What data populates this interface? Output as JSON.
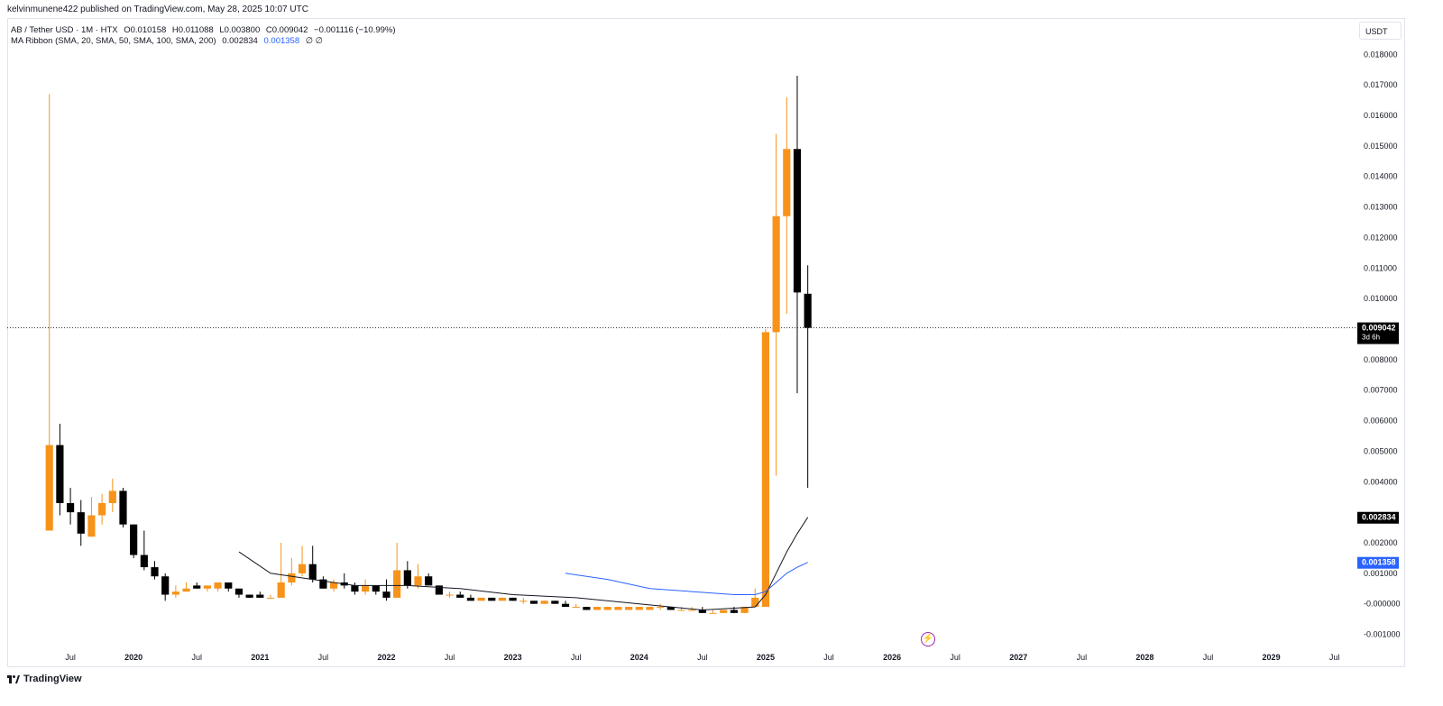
{
  "header": {
    "published": "kelvinmunene422 published on TradingView.com, May 28, 2025 10:07 UTC"
  },
  "legend": {
    "symbol": "AB / Tether USD · 1M · HTX",
    "open": "O0.010158",
    "high": "H0.011088",
    "low": "L0.003800",
    "close": "C0.009042",
    "change": "−0.001116 (−10.99%)",
    "ma_label": "MA Ribbon (SMA, 20, SMA, 50, SMA, 100, SMA, 200)",
    "ma_value1": "0.002834",
    "ma_value2": "0.001358",
    "ma_null": "∅ ∅"
  },
  "currency": "USDT",
  "price_badge": {
    "value": "0.009042",
    "countdown": "3d 6h"
  },
  "footer": {
    "brand": "TradingView"
  },
  "colors": {
    "up": "#f7931a",
    "down": "#000000",
    "ma20": "#131722",
    "ma50": "#2962ff",
    "grid": "#e0e3eb"
  },
  "chart_data": {
    "type": "candlestick",
    "ylim": [
      -0.00125,
      0.0186
    ],
    "y_ticks": [
      "0.018000",
      "0.017000",
      "0.016000",
      "0.015000",
      "0.014000",
      "0.013000",
      "0.012000",
      "0.011000",
      "0.010000",
      "0.008000",
      "0.007000",
      "0.006000",
      "0.005000",
      "0.004000",
      "0.002000",
      "0.001000",
      "-0.000000",
      "-0.001000"
    ],
    "x_ticks": [
      "Jul",
      "2020",
      "Jul",
      "2021",
      "Jul",
      "2022",
      "Jul",
      "2023",
      "Jul",
      "2024",
      "Jul",
      "2025",
      "Jul",
      "2026",
      "Jul",
      "2027",
      "Jul",
      "2028",
      "Jul",
      "2029",
      "Jul"
    ],
    "x_tick_dates": [
      "2019-07",
      "2020-01",
      "2020-07",
      "2021-01",
      "2021-07",
      "2022-01",
      "2022-07",
      "2023-01",
      "2023-07",
      "2024-01",
      "2024-07",
      "2025-01",
      "2025-07",
      "2026-01",
      "2026-07",
      "2027-01",
      "2027-07",
      "2028-01",
      "2028-07",
      "2029-01",
      "2029-07"
    ],
    "x_range": [
      "2019-01",
      "2029-09"
    ],
    "candles": [
      {
        "date": "2019-05",
        "o": 0.0024,
        "h": 0.0167,
        "l": 0.0024,
        "c": 0.0052
      },
      {
        "date": "2019-06",
        "o": 0.0052,
        "h": 0.0059,
        "l": 0.0029,
        "c": 0.0033
      },
      {
        "date": "2019-07",
        "o": 0.0033,
        "h": 0.0038,
        "l": 0.0026,
        "c": 0.003
      },
      {
        "date": "2019-08",
        "o": 0.003,
        "h": 0.0034,
        "l": 0.0019,
        "c": 0.0023
      },
      {
        "date": "2019-09",
        "o": 0.0022,
        "h": 0.0035,
        "l": 0.0022,
        "c": 0.0029
      },
      {
        "date": "2019-10",
        "o": 0.0029,
        "h": 0.0036,
        "l": 0.0026,
        "c": 0.0033
      },
      {
        "date": "2019-11",
        "o": 0.0033,
        "h": 0.0041,
        "l": 0.003,
        "c": 0.0037
      },
      {
        "date": "2019-12",
        "o": 0.0037,
        "h": 0.0038,
        "l": 0.0025,
        "c": 0.0026
      },
      {
        "date": "2020-01",
        "o": 0.0026,
        "h": 0.0026,
        "l": 0.0015,
        "c": 0.0016
      },
      {
        "date": "2020-02",
        "o": 0.0016,
        "h": 0.0024,
        "l": 0.0011,
        "c": 0.0012
      },
      {
        "date": "2020-03",
        "o": 0.0012,
        "h": 0.0014,
        "l": 0.0008,
        "c": 0.0009
      },
      {
        "date": "2020-04",
        "o": 0.0009,
        "h": 0.001,
        "l": 0.0001,
        "c": 0.0003
      },
      {
        "date": "2020-05",
        "o": 0.0003,
        "h": 0.0006,
        "l": 0.0002,
        "c": 0.0004
      },
      {
        "date": "2020-06",
        "o": 0.0004,
        "h": 0.0007,
        "l": 0.0004,
        "c": 0.0005
      },
      {
        "date": "2020-07",
        "o": 0.0006,
        "h": 0.0007,
        "l": 0.0005,
        "c": 0.0005
      },
      {
        "date": "2020-08",
        "o": 0.0005,
        "h": 0.0006,
        "l": 0.0004,
        "c": 0.0006
      },
      {
        "date": "2020-09",
        "o": 0.0005,
        "h": 0.0007,
        "l": 0.0004,
        "c": 0.0007
      },
      {
        "date": "2020-10",
        "o": 0.0007,
        "h": 0.0007,
        "l": 0.0004,
        "c": 0.0005
      },
      {
        "date": "2020-11",
        "o": 0.0005,
        "h": 0.0005,
        "l": 0.0002,
        "c": 0.0003
      },
      {
        "date": "2020-12",
        "o": 0.0003,
        "h": 0.0003,
        "l": 0.0002,
        "c": 0.0002
      },
      {
        "date": "2021-01",
        "o": 0.0003,
        "h": 0.0004,
        "l": 0.0002,
        "c": 0.0002
      },
      {
        "date": "2021-02",
        "o": 0.0002,
        "h": 0.0003,
        "l": 0.0002,
        "c": 0.0002
      },
      {
        "date": "2021-03",
        "o": 0.0002,
        "h": 0.002,
        "l": 0.0002,
        "c": 0.0007
      },
      {
        "date": "2021-04",
        "o": 0.0007,
        "h": 0.0015,
        "l": 0.0006,
        "c": 0.001
      },
      {
        "date": "2021-05",
        "o": 0.001,
        "h": 0.0019,
        "l": 0.0009,
        "c": 0.0013
      },
      {
        "date": "2021-06",
        "o": 0.0013,
        "h": 0.0019,
        "l": 0.0007,
        "c": 0.0008
      },
      {
        "date": "2021-07",
        "o": 0.0008,
        "h": 0.0009,
        "l": 0.0005,
        "c": 0.0005
      },
      {
        "date": "2021-08",
        "o": 0.0005,
        "h": 0.0008,
        "l": 0.0004,
        "c": 0.0007
      },
      {
        "date": "2021-09",
        "o": 0.0007,
        "h": 0.001,
        "l": 0.0005,
        "c": 0.0006
      },
      {
        "date": "2021-10",
        "o": 0.0006,
        "h": 0.0007,
        "l": 0.0003,
        "c": 0.0004
      },
      {
        "date": "2021-11",
        "o": 0.0004,
        "h": 0.0008,
        "l": 0.0003,
        "c": 0.0006
      },
      {
        "date": "2021-12",
        "o": 0.0006,
        "h": 0.0006,
        "l": 0.0003,
        "c": 0.0004
      },
      {
        "date": "2022-01",
        "o": 0.0004,
        "h": 0.0008,
        "l": 0.0001,
        "c": 0.0002
      },
      {
        "date": "2022-02",
        "o": 0.0002,
        "h": 0.002,
        "l": 0.0002,
        "c": 0.0011
      },
      {
        "date": "2022-03",
        "o": 0.0011,
        "h": 0.0014,
        "l": 0.0005,
        "c": 0.0006
      },
      {
        "date": "2022-04",
        "o": 0.0006,
        "h": 0.0013,
        "l": 0.0005,
        "c": 0.0009
      },
      {
        "date": "2022-05",
        "o": 0.0009,
        "h": 0.001,
        "l": 0.0006,
        "c": 0.0006
      },
      {
        "date": "2022-06",
        "o": 0.0006,
        "h": 0.0006,
        "l": 0.0003,
        "c": 0.0003
      },
      {
        "date": "2022-07",
        "o": 0.0003,
        "h": 0.0004,
        "l": 0.0002,
        "c": 0.0003
      },
      {
        "date": "2022-08",
        "o": 0.0003,
        "h": 0.0004,
        "l": 0.0002,
        "c": 0.0002
      },
      {
        "date": "2022-09",
        "o": 0.0002,
        "h": 0.0003,
        "l": 0.0001,
        "c": 0.0001
      },
      {
        "date": "2022-10",
        "o": 0.0001,
        "h": 0.0002,
        "l": 0.0001,
        "c": 0.0002
      },
      {
        "date": "2022-11",
        "o": 0.0002,
        "h": 0.0002,
        "l": 0.0001,
        "c": 0.0001
      },
      {
        "date": "2022-12",
        "o": 0.0001,
        "h": 0.0002,
        "l": 0.0001,
        "c": 0.0002
      },
      {
        "date": "2023-01",
        "o": 0.0002,
        "h": 0.0002,
        "l": 0.0001,
        "c": 0.0001
      },
      {
        "date": "2023-02",
        "o": 0.0001,
        "h": 0.0002,
        "l": 0.0,
        "c": 0.0001
      },
      {
        "date": "2023-03",
        "o": 0.0001,
        "h": 0.0001,
        "l": 0.0,
        "c": 0.0
      },
      {
        "date": "2023-04",
        "o": 0.0,
        "h": 0.0001,
        "l": 0.0,
        "c": 0.0001
      },
      {
        "date": "2023-05",
        "o": 0.0001,
        "h": 0.0001,
        "l": 0.0,
        "c": 0.0
      },
      {
        "date": "2023-06",
        "o": 0.0,
        "h": 0.0001,
        "l": -0.0001,
        "c": -0.0001
      },
      {
        "date": "2023-07",
        "o": -0.0001,
        "h": 0.0,
        "l": -0.0001,
        "c": -0.0001
      },
      {
        "date": "2023-08",
        "o": -0.0001,
        "h": -0.0001,
        "l": -0.0002,
        "c": -0.0002
      },
      {
        "date": "2023-09",
        "o": -0.0002,
        "h": -0.0001,
        "l": -0.0002,
        "c": -0.0001
      },
      {
        "date": "2023-10",
        "o": -0.0002,
        "h": -0.0001,
        "l": -0.0002,
        "c": -0.0001
      },
      {
        "date": "2023-11",
        "o": -0.0002,
        "h": -0.0001,
        "l": -0.0002,
        "c": -0.0001
      },
      {
        "date": "2023-12",
        "o": -0.0002,
        "h": -0.0001,
        "l": -0.0002,
        "c": -0.0001
      },
      {
        "date": "2024-01",
        "o": -0.0002,
        "h": -0.0001,
        "l": -0.0002,
        "c": -0.0001
      },
      {
        "date": "2024-02",
        "o": -0.0002,
        "h": -0.0001,
        "l": -0.0002,
        "c": -0.0001
      },
      {
        "date": "2024-03",
        "o": -0.0001,
        "h": 0.0,
        "l": -0.0002,
        "c": -0.0001
      },
      {
        "date": "2024-04",
        "o": -0.0001,
        "h": -0.0001,
        "l": -0.0002,
        "c": -0.0002
      },
      {
        "date": "2024-05",
        "o": -0.0002,
        "h": -0.0001,
        "l": -0.0002,
        "c": -0.0002
      },
      {
        "date": "2024-06",
        "o": -0.0002,
        "h": -0.0001,
        "l": -0.0002,
        "c": -0.0002
      },
      {
        "date": "2024-07",
        "o": -0.0002,
        "h": -0.0001,
        "l": -0.0003,
        "c": -0.0003
      },
      {
        "date": "2024-08",
        "o": -0.0003,
        "h": -0.0002,
        "l": -0.0003,
        "c": -0.0003
      },
      {
        "date": "2024-09",
        "o": -0.0003,
        "h": -0.0002,
        "l": -0.0003,
        "c": -0.0002
      },
      {
        "date": "2024-10",
        "o": -0.0002,
        "h": -0.0001,
        "l": -0.0003,
        "c": -0.0003
      },
      {
        "date": "2024-11",
        "o": -0.0003,
        "h": -0.0001,
        "l": -0.0003,
        "c": -0.0001
      },
      {
        "date": "2024-12",
        "o": -0.0001,
        "h": 0.0005,
        "l": -0.0001,
        "c": 0.0002
      },
      {
        "date": "2025-01",
        "o": -0.0001,
        "h": 0.009,
        "l": -0.0001,
        "c": 0.0089
      },
      {
        "date": "2025-02",
        "o": 0.0089,
        "h": 0.0154,
        "l": 0.0042,
        "c": 0.0127
      },
      {
        "date": "2025-03",
        "o": 0.0127,
        "h": 0.0166,
        "l": 0.0095,
        "c": 0.0149
      },
      {
        "date": "2025-04",
        "o": 0.0149,
        "h": 0.0173,
        "l": 0.0069,
        "c": 0.0102
      },
      {
        "date": "2025-05",
        "o": 0.010158,
        "h": 0.011088,
        "l": 0.0038,
        "c": 0.009042
      }
    ],
    "ma_series": [
      {
        "name": "SMA 20",
        "color": "#131722",
        "points": [
          {
            "date": "2020-11",
            "v": 0.0017
          },
          {
            "date": "2021-02",
            "v": 0.001
          },
          {
            "date": "2021-06",
            "v": 0.0008
          },
          {
            "date": "2021-10",
            "v": 0.0006
          },
          {
            "date": "2022-03",
            "v": 0.0006
          },
          {
            "date": "2022-08",
            "v": 0.0005
          },
          {
            "date": "2023-01",
            "v": 0.0003
          },
          {
            "date": "2023-07",
            "v": 0.0002
          },
          {
            "date": "2024-01",
            "v": 0.0
          },
          {
            "date": "2024-07",
            "v": -0.0002
          },
          {
            "date": "2024-12",
            "v": -0.0001
          },
          {
            "date": "2025-01",
            "v": 0.0003
          },
          {
            "date": "2025-02",
            "v": 0.001
          },
          {
            "date": "2025-03",
            "v": 0.0017
          },
          {
            "date": "2025-04",
            "v": 0.0023
          },
          {
            "date": "2025-05",
            "v": 0.002834
          }
        ]
      },
      {
        "name": "SMA 50",
        "color": "#2962ff",
        "points": [
          {
            "date": "2023-06",
            "v": 0.001
          },
          {
            "date": "2023-10",
            "v": 0.0008
          },
          {
            "date": "2024-02",
            "v": 0.0005
          },
          {
            "date": "2024-06",
            "v": 0.0004
          },
          {
            "date": "2024-10",
            "v": 0.0003
          },
          {
            "date": "2024-12",
            "v": 0.0003
          },
          {
            "date": "2025-01",
            "v": 0.0004
          },
          {
            "date": "2025-02",
            "v": 0.0007
          },
          {
            "date": "2025-03",
            "v": 0.001
          },
          {
            "date": "2025-04",
            "v": 0.0012
          },
          {
            "date": "2025-05",
            "v": 0.001358
          }
        ]
      }
    ],
    "last_price": 0.009042
  }
}
